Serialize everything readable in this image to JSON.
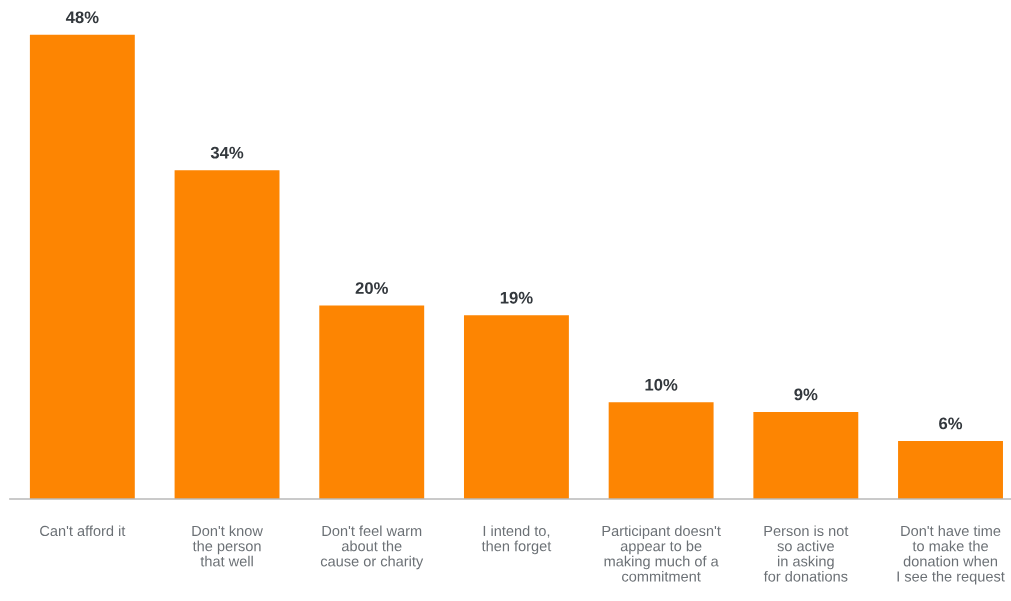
{
  "chart_data": {
    "type": "bar",
    "categories": [
      "Can't afford it",
      "Don't know\nthe person\nthat well",
      "Don't feel warm\nabout the\ncause or charity",
      "I intend to,\nthen forget",
      "Participant doesn't\nappear to be\nmaking much of a\ncommitment",
      "Person is not\nso active\nin asking\nfor donations",
      "Don't have time\nto make the\ndonation when\nI see the request"
    ],
    "values": [
      48,
      34,
      20,
      19,
      10,
      9,
      6
    ],
    "color": "#fd8502",
    "value_labels": [
      "48%",
      "34%",
      "20%",
      "19%",
      "10%",
      "9%",
      "6%"
    ]
  }
}
